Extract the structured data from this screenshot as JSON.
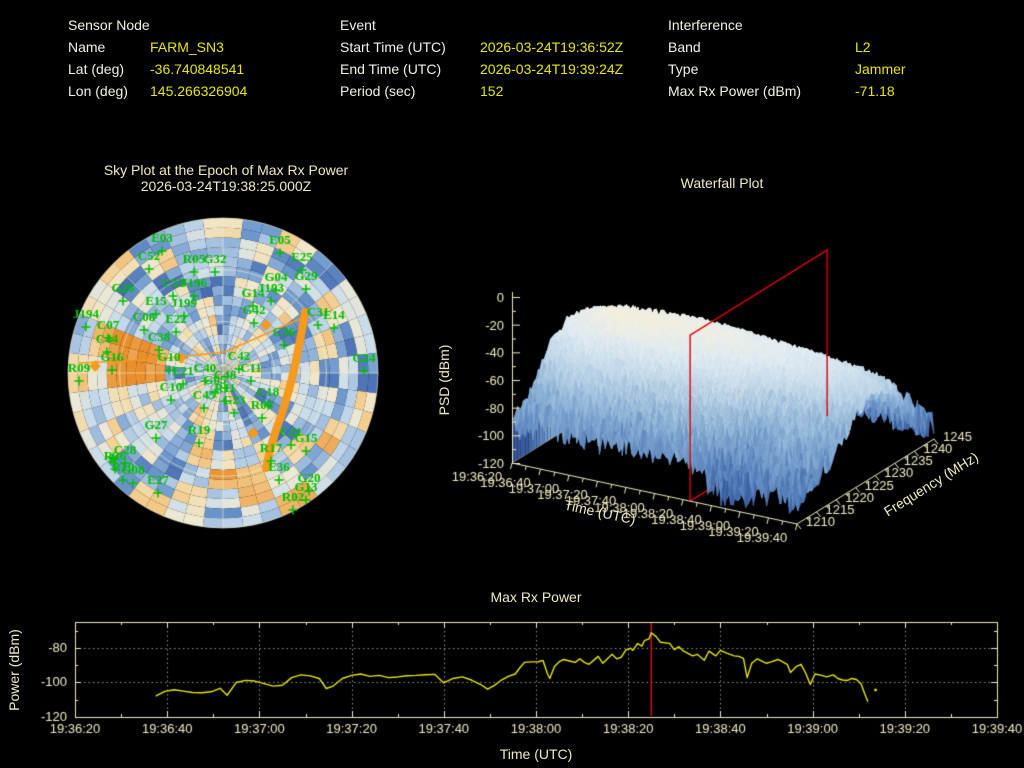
{
  "header": {
    "sensor": {
      "title": "Sensor Node",
      "rows": [
        {
          "label": "Name",
          "value": "FARM_SN3"
        },
        {
          "label": "Lat (deg)",
          "value": "-36.740848541"
        },
        {
          "label": "Lon (deg)",
          "value": "145.266326904"
        }
      ]
    },
    "event": {
      "title": "Event",
      "rows": [
        {
          "label": "Start Time (UTC)",
          "value": "2026-03-24T19:36:52Z"
        },
        {
          "label": "End Time (UTC)",
          "value": "2026-03-24T19:39:24Z"
        },
        {
          "label": "Period (sec)",
          "value": "152"
        }
      ]
    },
    "interference": {
      "title": "Interference",
      "rows": [
        {
          "label": "Band",
          "value": "L2"
        },
        {
          "label": "Type",
          "value": "Jammer"
        },
        {
          "label": "Max Rx Power (dBm)",
          "value": "-71.18"
        }
      ]
    }
  },
  "colors": {
    "background": "#000000",
    "axis_text": "#efe9c0",
    "value_text": "#e6e600",
    "label_text": "#f1f1e4",
    "satellite_green": "#00c000",
    "track_orange": "#f59a1c",
    "marker_red": "#ee1111"
  },
  "chart_data": [
    {
      "type": "polar-heatmap",
      "title_line1": "Sky Plot at the Epoch of Max Rx Power",
      "title_line2": "2026-03-24T19:38:25.000Z",
      "satellites": [
        [
          "E03",
          122,
          40
        ],
        [
          "C52",
          109,
          58
        ],
        [
          "R05",
          154,
          61
        ],
        [
          "G32",
          175,
          61
        ],
        [
          "E05",
          240,
          42
        ],
        [
          "E25",
          262,
          59
        ],
        [
          "G29",
          266,
          78
        ],
        [
          "G04",
          236,
          79
        ],
        [
          "J193",
          231,
          90
        ],
        [
          "G26",
          83,
          90
        ],
        [
          "C33",
          133,
          85
        ],
        [
          "J196",
          154,
          85
        ],
        [
          "E15",
          116,
          103
        ],
        [
          "J199",
          144,
          105
        ],
        [
          "G14",
          213,
          95
        ],
        [
          "G42",
          214,
          112
        ],
        [
          "J194",
          46,
          116
        ],
        [
          "C08",
          104,
          119
        ],
        [
          "E22",
          136,
          121
        ],
        [
          "C31",
          278,
          114
        ],
        [
          "E14",
          294,
          117
        ],
        [
          "C07",
          68,
          127
        ],
        [
          "C38",
          119,
          139
        ],
        [
          "C44",
          67,
          141
        ],
        [
          "C36",
          244,
          134
        ],
        [
          "G16",
          72,
          159
        ],
        [
          "G10",
          129,
          159
        ],
        [
          "R09",
          39,
          170
        ],
        [
          "C42",
          199,
          158
        ],
        [
          "C40",
          165,
          170
        ],
        [
          "C11",
          211,
          170
        ],
        [
          "E21",
          143,
          173
        ],
        [
          "C48",
          185,
          177
        ],
        [
          "G05",
          175,
          182
        ],
        [
          "R11",
          185,
          190
        ],
        [
          "C10",
          131,
          189
        ],
        [
          "C18",
          228,
          194
        ],
        [
          "G24",
          324,
          160
        ],
        [
          "C45",
          164,
          197
        ],
        [
          "G23",
          194,
          202
        ],
        [
          "R06",
          222,
          207
        ],
        [
          "G27",
          116,
          227
        ],
        [
          "R19",
          159,
          232
        ],
        [
          "C21",
          251,
          234
        ],
        [
          "G15",
          266,
          240
        ],
        [
          "R17",
          231,
          250
        ],
        [
          "C28",
          85,
          252
        ],
        [
          "R26",
          75,
          258
        ],
        [
          "R10",
          83,
          269
        ],
        [
          "G08",
          93,
          272
        ],
        [
          "E36",
          239,
          269
        ],
        [
          "E27",
          118,
          282
        ],
        [
          "G20",
          269,
          280
        ],
        [
          "G13",
          266,
          289
        ],
        [
          "R02",
          253,
          299
        ]
      ],
      "heatmap_rings": [
        "455464546435545446455454",
        "346535644526354553444635",
        "244653352624456344253546",
        "335424463535263445983435",
        "253623544263573454994352",
        "425336253647842536893524",
        "352462437358463264574263",
        "536245263474356345635624"
      ],
      "interference_track": [
        [
          265,
          114
        ],
        [
          262,
          132
        ],
        [
          258,
          152
        ],
        [
          254,
          172
        ],
        [
          249,
          192
        ],
        [
          243,
          212
        ],
        [
          236,
          232
        ],
        [
          230,
          252
        ],
        [
          226,
          270
        ]
      ],
      "aux_track": [
        [
          38,
          165
        ],
        [
          110,
          162
        ],
        [
          185,
          154
        ],
        [
          262,
          120
        ]
      ],
      "diamond_markers": [
        [
          55,
          168
        ],
        [
          226,
          127
        ],
        [
          213,
          235
        ],
        [
          141,
          160
        ]
      ],
      "star_markers": [
        [
          73,
          261
        ]
      ]
    },
    {
      "type": "surface",
      "title": "Waterfall Plot",
      "xlabel": "Time (UTC)",
      "ylabel": "Frequency (MHz)",
      "zlabel": "PSD (dBm)",
      "psd_ticks": [
        "0",
        "-20",
        "-40",
        "-60",
        "-80",
        "-100",
        "-120"
      ],
      "time_ticks": [
        "19:36:20",
        "19:36:40",
        "19:37:00",
        "19:37:20",
        "19:37:40",
        "19:38:00",
        "19:38:20",
        "19:38:40",
        "19:39:00",
        "19:39:20",
        "19:39:40"
      ],
      "freq_ticks": [
        "1210",
        "1215",
        "1220",
        "1225",
        "1230",
        "1235",
        "1240",
        "1245"
      ],
      "time_range_sec": [
        0,
        200
      ],
      "freq_range_mhz": [
        1210,
        1245
      ],
      "psd_range_dbm": [
        -120,
        0
      ],
      "max_power_marker_sec": 125,
      "psd_grid_time_sec": [
        0,
        25,
        50,
        75,
        100,
        125,
        150,
        175,
        200
      ],
      "psd_grid_freq_mhz": [
        1210,
        1215,
        1220,
        1225,
        1230,
        1235,
        1240,
        1245
      ],
      "psd_grid_dbm": [
        [
          -95,
          -75,
          -50,
          -40,
          -45,
          -60,
          -90,
          -112
        ],
        [
          -88,
          -60,
          -38,
          -31,
          -38,
          -55,
          -85,
          -110
        ],
        [
          -90,
          -62,
          -36,
          -29,
          -36,
          -52,
          -82,
          -108
        ],
        [
          -92,
          -65,
          -40,
          -33,
          -36,
          -48,
          -78,
          -105
        ],
        [
          -90,
          -66,
          -45,
          -35,
          -38,
          -50,
          -75,
          -103
        ],
        [
          -92,
          -68,
          -50,
          -38,
          -40,
          -53,
          -80,
          -105
        ],
        [
          -112,
          -95,
          -68,
          -45,
          -42,
          -55,
          -85,
          -108
        ],
        [
          -100,
          -80,
          -72,
          -52,
          -47,
          -58,
          -88,
          -110
        ],
        [
          -110,
          -95,
          -85,
          -68,
          -58,
          -65,
          -92,
          -112
        ]
      ]
    },
    {
      "type": "line",
      "title": "Max Rx Power",
      "xlabel": "Time (UTC)",
      "ylabel": "Power (dBm)",
      "ytick_labels": [
        "-80",
        "-100",
        "-120"
      ],
      "ytick_values": [
        -80,
        -100,
        -120
      ],
      "xtick_labels": [
        "19:36:20",
        "19:36:40",
        "19:37:00",
        "19:37:20",
        "19:37:40",
        "19:38:00",
        "19:38:20",
        "19:38:40",
        "19:39:00",
        "19:39:20",
        "19:39:40"
      ],
      "x_range_sec": [
        0,
        200
      ],
      "ylim": [
        -120,
        -65
      ],
      "marker_sec": 125,
      "series_sec_dbm": [
        [
          17.5,
          -107.9
        ],
        [
          19.5,
          -105.2
        ],
        [
          21.5,
          -104.2
        ],
        [
          23.5,
          -105.0
        ],
        [
          25.5,
          -105.8
        ],
        [
          27.5,
          -106.0
        ],
        [
          29.5,
          -105.4
        ],
        [
          31.5,
          -103.4
        ],
        [
          33,
          -107.4
        ],
        [
          35,
          -100.0
        ],
        [
          37,
          -98.8
        ],
        [
          39,
          -99.2
        ],
        [
          41,
          -100.7
        ],
        [
          43,
          -102.1
        ],
        [
          45,
          -101.6
        ],
        [
          47,
          -97.2
        ],
        [
          49,
          -95.6
        ],
        [
          51,
          -96.2
        ],
        [
          53,
          -97.7
        ],
        [
          54.5,
          -103.5
        ],
        [
          56,
          -102.1
        ],
        [
          58,
          -97.7
        ],
        [
          60,
          -95.9
        ],
        [
          62,
          -95.1
        ],
        [
          64,
          -96.5
        ],
        [
          66,
          -95.9
        ],
        [
          68,
          -97.2
        ],
        [
          70,
          -96.8
        ],
        [
          72,
          -96.1
        ],
        [
          74,
          -95.9
        ],
        [
          76,
          -95.5
        ],
        [
          78,
          -95.3
        ],
        [
          80,
          -100.3
        ],
        [
          82,
          -97.7
        ],
        [
          84,
          -96.8
        ],
        [
          86,
          -98.6
        ],
        [
          88,
          -101.2
        ],
        [
          89.5,
          -103.9
        ],
        [
          91,
          -101.7
        ],
        [
          92.5,
          -98.6
        ],
        [
          94,
          -96.5
        ],
        [
          95.5,
          -95.1
        ],
        [
          96.5,
          -91.5
        ],
        [
          97.5,
          -88.4
        ],
        [
          99,
          -88.1
        ],
        [
          100.5,
          -88.0
        ],
        [
          101.5,
          -87.2
        ],
        [
          102.5,
          -95.1
        ],
        [
          103,
          -97.7
        ],
        [
          104,
          -90.7
        ],
        [
          105,
          -88.1
        ],
        [
          106,
          -86.7
        ],
        [
          107.5,
          -87.7
        ],
        [
          108.5,
          -88.4
        ],
        [
          109.5,
          -86.3
        ],
        [
          110.5,
          -88.4
        ],
        [
          111.5,
          -89.5
        ],
        [
          112.5,
          -87.2
        ],
        [
          113.5,
          -84.9
        ],
        [
          114.5,
          -88.9
        ],
        [
          115.5,
          -86.3
        ],
        [
          116.5,
          -83.7
        ],
        [
          117.5,
          -86.3
        ],
        [
          118.5,
          -85.4
        ],
        [
          119.5,
          -81.1
        ],
        [
          120.5,
          -80.2
        ],
        [
          121,
          -81.4
        ],
        [
          122,
          -77.5
        ],
        [
          123,
          -78.9
        ],
        [
          123.5,
          -75.8
        ],
        [
          124.5,
          -74.8
        ],
        [
          125,
          -71.2
        ],
        [
          126,
          -73.3
        ],
        [
          127,
          -76.7
        ],
        [
          129,
          -77.4
        ],
        [
          130,
          -81.0
        ],
        [
          131,
          -79.3
        ],
        [
          132,
          -81.9
        ],
        [
          134,
          -84.6
        ],
        [
          135,
          -83.7
        ],
        [
          136.5,
          -87.2
        ],
        [
          137.5,
          -81.9
        ],
        [
          139,
          -84.6
        ],
        [
          140,
          -81.4
        ],
        [
          141.5,
          -83.2
        ],
        [
          143,
          -84.6
        ],
        [
          144,
          -84.9
        ],
        [
          145,
          -86.0
        ],
        [
          145.8,
          -97.2
        ],
        [
          146.8,
          -88.9
        ],
        [
          148,
          -86.3
        ],
        [
          149,
          -87.7
        ],
        [
          150,
          -88.9
        ],
        [
          151,
          -88.1
        ],
        [
          152.5,
          -86.7
        ],
        [
          153.5,
          -88.1
        ],
        [
          154.5,
          -89.5
        ],
        [
          155.2,
          -94.2
        ],
        [
          156.5,
          -90.7
        ],
        [
          157.5,
          -89.5
        ],
        [
          158.5,
          -94.7
        ],
        [
          159.5,
          -101.2
        ],
        [
          160.5,
          -95.1
        ],
        [
          162,
          -95.9
        ],
        [
          163,
          -96.8
        ],
        [
          164.5,
          -95.6
        ],
        [
          165.5,
          -97.7
        ],
        [
          166.5,
          -98.6
        ],
        [
          167.5,
          -98.9
        ],
        [
          168.5,
          -97.7
        ],
        [
          169.5,
          -98.3
        ],
        [
          170.5,
          -100.7
        ],
        [
          171.3,
          -106.5
        ],
        [
          172,
          -111.2
        ]
      ],
      "outlier_point": [
        173.6,
        -104.2
      ]
    }
  ]
}
